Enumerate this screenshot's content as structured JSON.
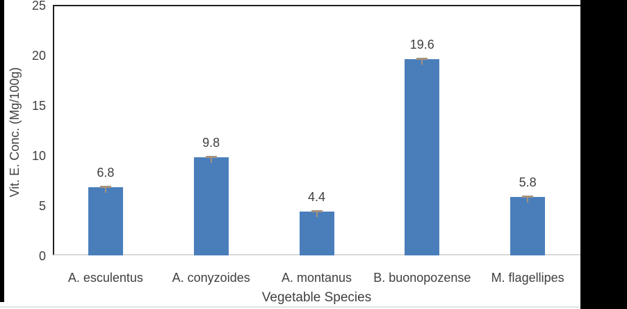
{
  "window": {
    "background": "#ffffff",
    "frame_color": "#000000"
  },
  "chart_data": {
    "type": "bar",
    "title": "",
    "categories": [
      "A. esculentus",
      "A. conyzoides",
      "A. montanus",
      "B. buonopozense",
      "M. flagellipes"
    ],
    "values": [
      6.8,
      9.8,
      4.4,
      19.6,
      5.8
    ],
    "value_labels": [
      "6.8",
      "9.8",
      "4.4",
      "19.6",
      "5.8"
    ],
    "xlabel": "Vegetable Species",
    "ylabel": "Vit. E. Conc. (Mg/100g)",
    "ylim": [
      0,
      25
    ],
    "yticks": [
      0,
      5,
      10,
      15,
      20,
      25
    ],
    "grid": false,
    "legend": "none",
    "has_error_bars": true,
    "bar_color": "#4A7EBB",
    "error_bar_color": "#A5927E",
    "text_color": "#404040",
    "axis_line_color": "#D9D9D9",
    "plot_border_color": "#1F1F1F"
  }
}
